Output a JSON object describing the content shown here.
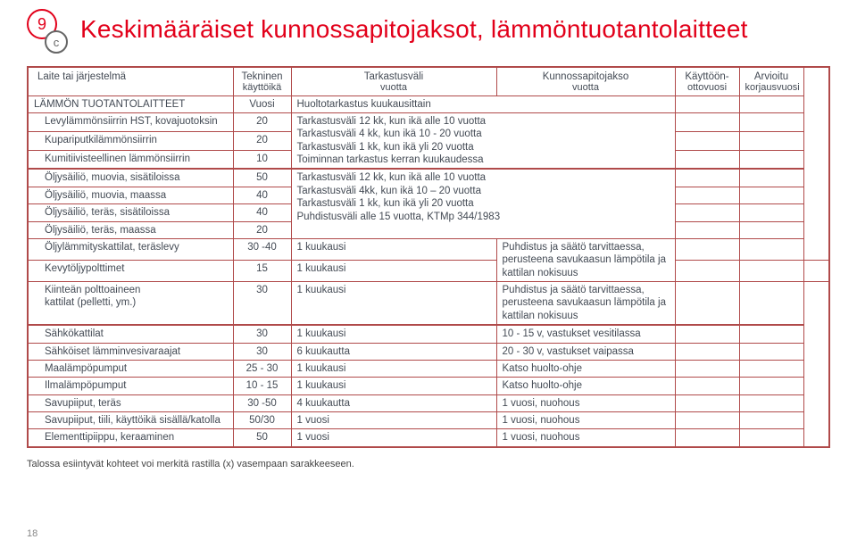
{
  "header": {
    "badge_main": "9",
    "badge_sub": "c",
    "title": "Keskimääräiset kunnossapitojaksot, lämmöntuotantolaitteet"
  },
  "columns": [
    {
      "l1": "Laite tai järjestelmä",
      "l2": ""
    },
    {
      "l1": "Tekninen",
      "l2": "käyttöikä"
    },
    {
      "l1": "Tarkastusväli",
      "l2": "vuotta"
    },
    {
      "l1": "Kunnossapitojakso",
      "l2": "vuotta"
    },
    {
      "l1": "Käyttöön-",
      "l2": "ottovuosi"
    },
    {
      "l1": "Arvioitu",
      "l2": "korjausvuosi"
    }
  ],
  "rows": [
    {
      "type": "sec",
      "c1": "LÄMMÖN TUOTANTOLAITTEET",
      "c2": "Vuosi",
      "c3": "Huoltotarkastus kuukausittain",
      "c3span": 2
    },
    {
      "c1": "Levylämmönsiirrin HST, kovajuotoksin",
      "c2": "20",
      "c3": "Tarkastusväli 12 kk, kun ikä alle 10 vuotta\nTarkastusväli 4 kk, kun ikä 10 - 20 vuotta\nTarkastusväli 1 kk, kun ikä yli 20 vuotta\nToiminnan tarkastus kerran kuukaudessa",
      "c3span": 2,
      "c3rowspan": 3
    },
    {
      "c1": "Kupariputkilämmönsiirrin",
      "c2": "20"
    },
    {
      "c1": "Kumitiivisteellinen lämmönsiirrin",
      "c2": "10"
    },
    {
      "group": true,
      "c1": "Öljysäiliö, muovia, sisätiloissa",
      "c2": "50",
      "c3": "Tarkastusväli 12 kk, kun ikä alle 10 vuotta\nTarkastusväli 4kk, kun ikä 10 – 20 vuotta\nTarkastusväli 1 kk, kun ikä yli 20 vuotta\nPuhdistusväli alle 15 vuotta, KTMp 344/1983",
      "c3span": 2,
      "c3rowspan": 4
    },
    {
      "c1": "Öljysäiliö, muovia, maassa",
      "c2": "40"
    },
    {
      "c1": "Öljysäiliö, teräs, sisätiloissa",
      "c2": "40"
    },
    {
      "c1": "Öljysäiliö, teräs, maassa",
      "c2": "20"
    },
    {
      "c1": "Öljylämmityskattilat, teräslevy",
      "c2": "30 -40",
      "c3": "1 kuukausi",
      "c4": "Puhdistus ja säätö tarvittaessa, perusteena savukaasun lämpötila ja kattilan nokisuus",
      "c4rowspan": 2
    },
    {
      "c1": "Kevytöljypolttimet",
      "c2": "15",
      "c3": "1 kuukausi"
    },
    {
      "c1": "Kiinteän polttoaineen\nkattilat (pelletti, ym.)",
      "c2": "30",
      "c3": "1 kuukausi",
      "c4": "Puhdistus ja säätö tarvittaessa, perusteena savukaasun lämpötila ja kattilan nokisuus"
    },
    {
      "group": true,
      "c1": "Sähkökattilat",
      "c2": "30",
      "c3": "1 kuukausi",
      "c4": "10 - 15 v, vastukset vesitilassa"
    },
    {
      "c1": "Sähköiset lämminvesivaraajat",
      "c2": "30",
      "c3": "6 kuukautta",
      "c4": "20 - 30 v, vastukset vaipassa"
    },
    {
      "c1": "Maalämpöpumput",
      "c2": "25 - 30",
      "c3": "1 kuukausi",
      "c4": "Katso huolto-ohje"
    },
    {
      "c1": "Ilmalämpöpumput",
      "c2": "10 - 15",
      "c3": "1 kuukausi",
      "c4": "Katso huolto-ohje"
    },
    {
      "c1": "Savupiiput, teräs",
      "c2": "30 -50",
      "c3": "4 kuukautta",
      "c4": "1 vuosi, nuohous"
    },
    {
      "c1": "Savupiiput, tiili, käyttöikä sisällä/katolla",
      "c2": "50/30",
      "c3": "1 vuosi",
      "c4": "1 vuosi, nuohous"
    },
    {
      "c1": "Elementtipiippu, keraaminen",
      "c2": "50",
      "c3": "1 vuosi",
      "c4": "1 vuosi, nuohous"
    }
  ],
  "footnote": "Talossa esiintyvät kohteet voi merkitä rastilla (x) vasempaan sarakkeeseen.",
  "page_number": "18"
}
